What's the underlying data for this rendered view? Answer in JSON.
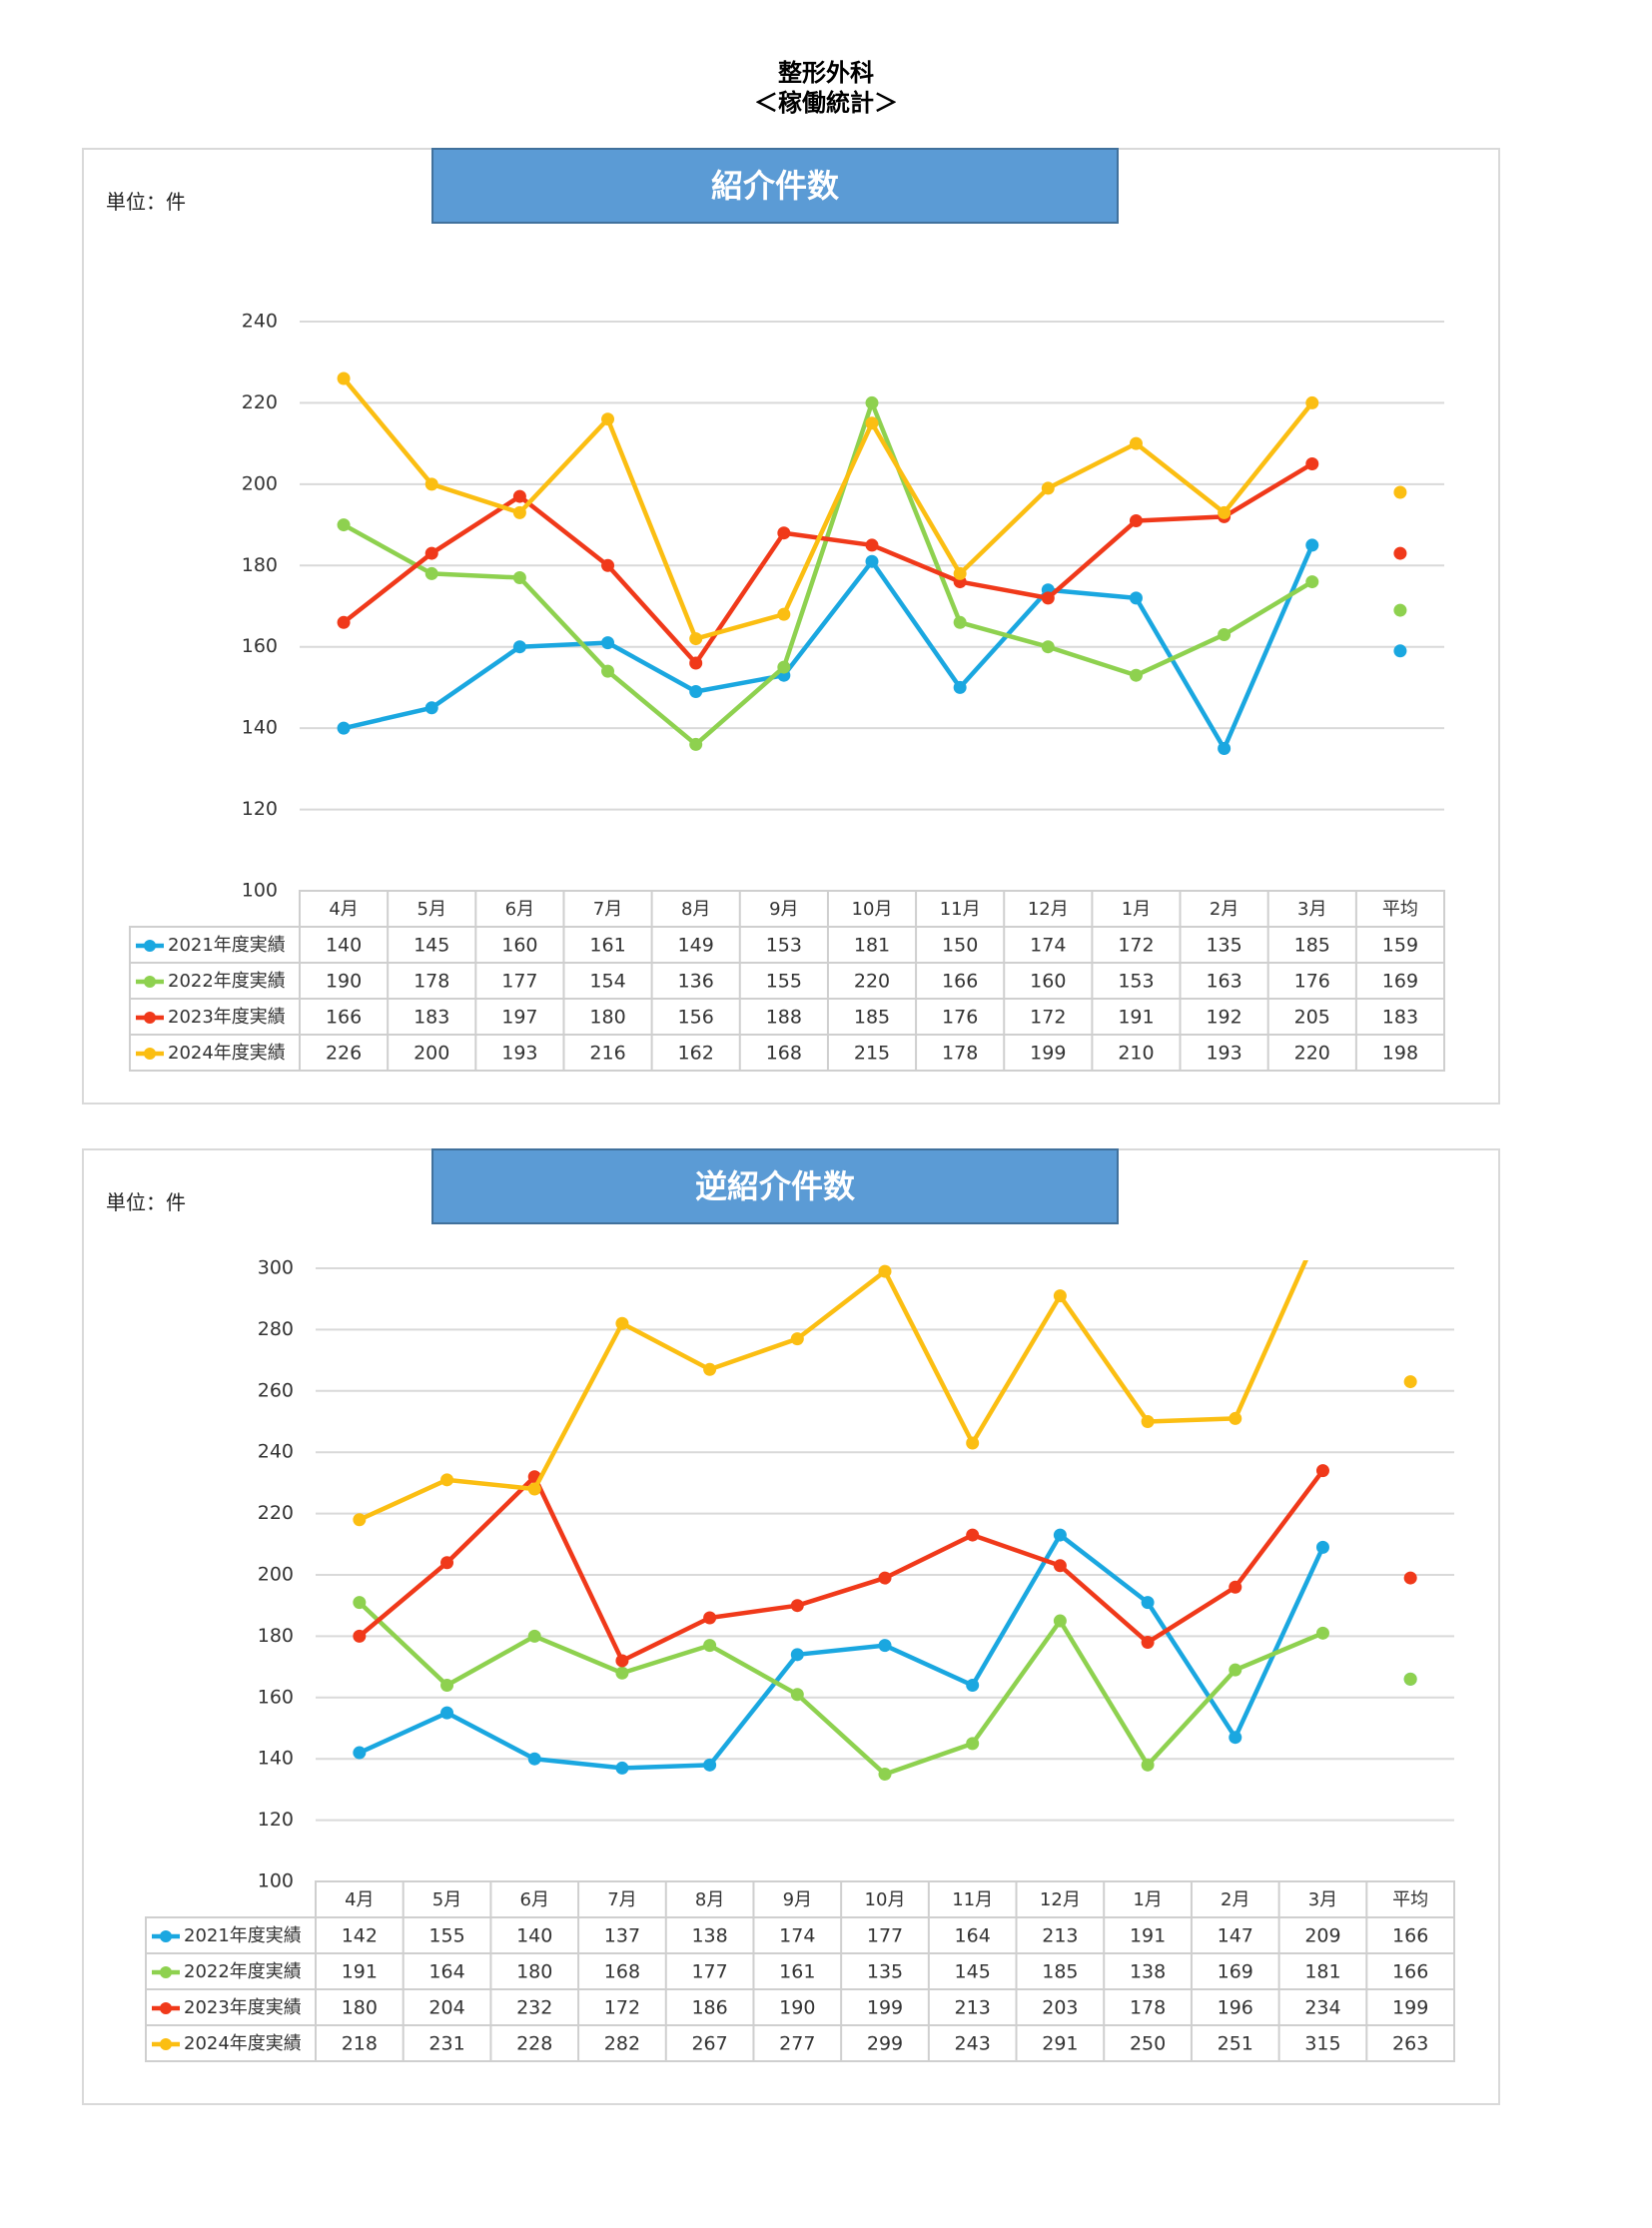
{
  "header": {
    "title": "整形外科",
    "subtitle": "＜稼働統計＞"
  },
  "colors": {
    "series": [
      "#1aa7e0",
      "#8ed14f",
      "#f0391a",
      "#fbbe12"
    ],
    "title_bg": "#5b9bd5",
    "grid": "#d9d9d9"
  },
  "chart_data": [
    {
      "type": "line",
      "title": "紹介件数",
      "unit_label": "単位：件",
      "ylim": [
        100,
        240
      ],
      "yticks": [
        100,
        120,
        140,
        160,
        180,
        200,
        220,
        240
      ],
      "categories": [
        "4月",
        "5月",
        "6月",
        "7月",
        "8月",
        "9月",
        "10月",
        "11月",
        "12月",
        "1月",
        "2月",
        "3月"
      ],
      "avg_label": "平均",
      "grid": true,
      "legend": "table-bottom",
      "series": [
        {
          "name": "2021年度実績",
          "values": [
            140,
            145,
            160,
            161,
            149,
            153,
            181,
            150,
            174,
            172,
            135,
            185
          ],
          "average": 159
        },
        {
          "name": "2022年度実績",
          "values": [
            190,
            178,
            177,
            154,
            136,
            155,
            220,
            166,
            160,
            153,
            163,
            176
          ],
          "average": 169
        },
        {
          "name": "2023年度実績",
          "values": [
            166,
            183,
            197,
            180,
            156,
            188,
            185,
            176,
            172,
            191,
            192,
            205
          ],
          "average": 183
        },
        {
          "name": "2024年度実績",
          "values": [
            226,
            200,
            193,
            216,
            162,
            168,
            215,
            178,
            199,
            210,
            193,
            220
          ],
          "average": 198
        }
      ]
    },
    {
      "type": "line",
      "title": "逆紹介件数",
      "unit_label": "単位：件",
      "ylim": [
        100,
        300
      ],
      "yticks": [
        100,
        120,
        140,
        160,
        180,
        200,
        220,
        240,
        260,
        280,
        300
      ],
      "categories": [
        "4月",
        "5月",
        "6月",
        "7月",
        "8月",
        "9月",
        "10月",
        "11月",
        "12月",
        "1月",
        "2月",
        "3月"
      ],
      "avg_label": "平均",
      "grid": true,
      "legend": "table-bottom",
      "series": [
        {
          "name": "2021年度実績",
          "values": [
            142,
            155,
            140,
            137,
            138,
            174,
            177,
            164,
            213,
            191,
            147,
            209
          ],
          "average": 166
        },
        {
          "name": "2022年度実績",
          "values": [
            191,
            164,
            180,
            168,
            177,
            161,
            135,
            145,
            185,
            138,
            169,
            181
          ],
          "average": 166
        },
        {
          "name": "2023年度実績",
          "values": [
            180,
            204,
            232,
            172,
            186,
            190,
            199,
            213,
            203,
            178,
            196,
            234
          ],
          "average": 199
        },
        {
          "name": "2024年度実績",
          "values": [
            218,
            231,
            228,
            282,
            267,
            277,
            299,
            243,
            291,
            250,
            251,
            315
          ],
          "average": 263
        }
      ]
    }
  ]
}
